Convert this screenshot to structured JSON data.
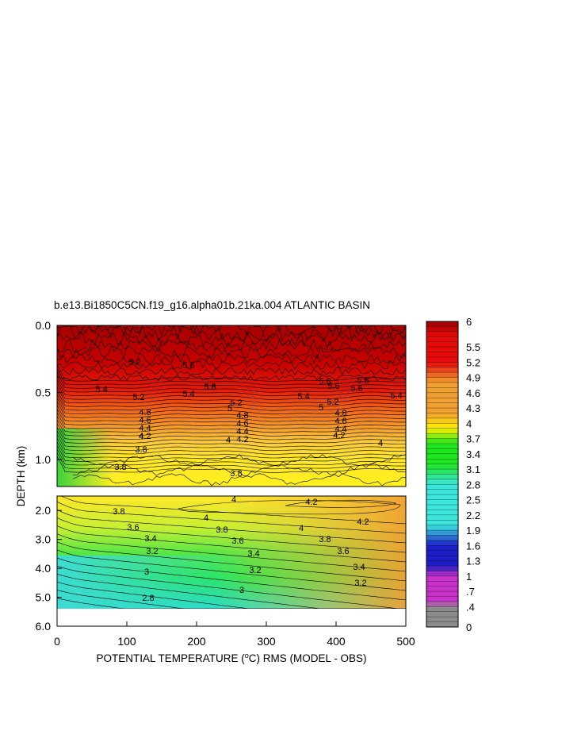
{
  "chart_data": {
    "type": "heatmap",
    "title": "b.e13.Bi1850C5CN.f19_g16.alpha01b.21ka.004 ATLANTIC BASIN",
    "xlabel": "POTENTIAL TEMPERATURE (°C) RMS (MODEL - OBS)",
    "xlabel_parts": {
      "prefix": "POTENTIAL TEMPERATURE (",
      "sup": "o",
      "suffix": "C) RMS (MODEL - OBS)"
    },
    "ylabel": "DEPTH (km)",
    "xlim": [
      0,
      500
    ],
    "x_ticks": [
      "0",
      "100",
      "200",
      "300",
      "400",
      "500"
    ],
    "upper_panel": {
      "ylim": [
        0.0,
        1.2
      ],
      "y_ticks": [
        "0.0",
        "0.5",
        "1.0"
      ],
      "contour_labels": [
        "5.2",
        "5.4",
        "5.6",
        "5.8",
        "5.2",
        "4.8",
        "4.6",
        "4.4",
        "4.2",
        "4",
        "3.8",
        "3.8",
        "5.2",
        "5",
        "4.8",
        "4.6",
        "4.4",
        "4.2",
        "4",
        "3.8",
        "5.8",
        "5.6",
        "5.4",
        "5",
        "5.2",
        "4.8",
        "4.6",
        "4.4",
        "4.2",
        "4",
        "5.8",
        "5.6",
        "5.4",
        "5.6",
        "5.4"
      ]
    },
    "lower_panel": {
      "ylim": [
        1.5,
        6.0
      ],
      "y_ticks": [
        "2.0",
        "3.0",
        "4.0",
        "5.0",
        "6.0"
      ],
      "contour_labels": [
        "3.8",
        "3.6",
        "3.4",
        "3.2",
        "3",
        "2.8",
        "4",
        "4",
        "3.8",
        "3.6",
        "3.4",
        "3.2",
        "3",
        "4.2",
        "4.2",
        "4",
        "3.8",
        "3.6",
        "3.4",
        "3.2"
      ]
    },
    "colorbar": {
      "ticks": [
        "6",
        "5.5",
        "5.2",
        "4.9",
        "4.6",
        "4.3",
        "4",
        "3.7",
        "3.4",
        "3.1",
        "2.8",
        "2.5",
        "2.2",
        "1.9",
        "1.6",
        "1.3",
        "1",
        ".7",
        ".4",
        "0"
      ],
      "range": [
        0,
        6
      ],
      "colors": {
        "gray": "#8c8c8c",
        "magenta": "#c832c8",
        "blue": "#1e1ec8",
        "cyan": "#3ce6dc",
        "green": "#1ee61e",
        "yellow": "#fff000",
        "orange": "#f0a032",
        "red": "#e60a0a",
        "dark_red": "#a00000"
      }
    }
  }
}
